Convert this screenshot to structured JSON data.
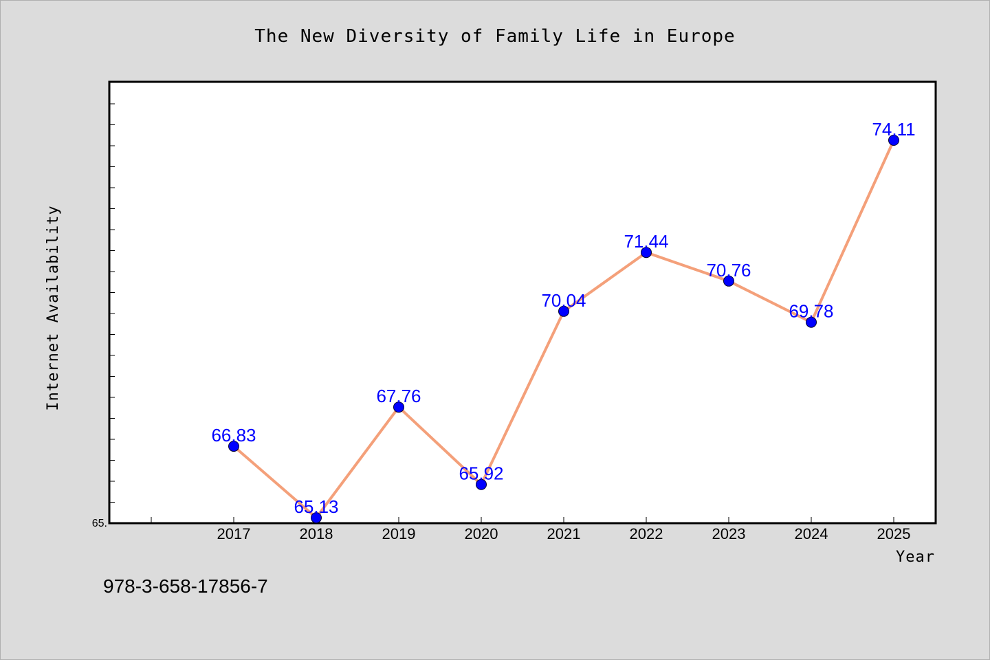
{
  "colors": {
    "background": "#dcdcdc",
    "plot_area": "#ffffff",
    "line": "#f4a07a",
    "marker": "#0000ff",
    "data_label": "#0000ff"
  },
  "footer": {
    "isbn": "978-3-658-17856-7"
  },
  "chart_data": {
    "type": "line",
    "title": "The New Diversity of Family Life in Europe",
    "xlabel": "Year",
    "ylabel": "Internet Availability",
    "categories": [
      "2017",
      "2018",
      "2019",
      "2020",
      "2021",
      "2022",
      "2023",
      "2024",
      "2025"
    ],
    "series": [
      {
        "values": [
          66.83,
          65.13,
          67.76,
          65.92,
          70.04,
          71.44,
          70.76,
          69.78,
          74.11
        ]
      }
    ],
    "value_labels": [
      "66.83",
      "65.13",
      "67.76",
      "65.92",
      "70.04",
      "71.44",
      "70.76",
      "69.78",
      "74.11"
    ],
    "y_tick_label": "65.",
    "ylim": [
      65,
      75.5
    ],
    "grid": false,
    "legend": "none"
  }
}
